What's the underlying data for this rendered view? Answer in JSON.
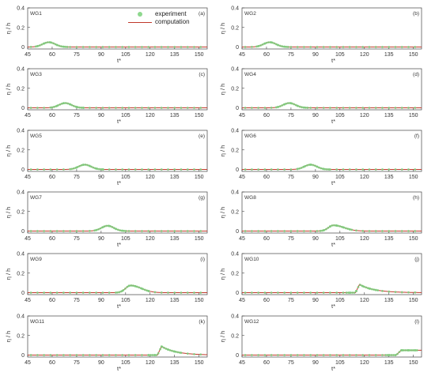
{
  "legend": {
    "experiment_label": "experiment",
    "computation_label": "computation"
  },
  "colors": {
    "experiment": "#7ccd7c",
    "computation": "#c0392b",
    "axis": "#444444"
  },
  "chart_data": [
    {
      "type": "line",
      "panel_label": "(a)",
      "gauge": "WG1",
      "xlabel": "t*",
      "ylabel": "η / h",
      "xlim": [
        45,
        155
      ],
      "ylim": [
        -0.02,
        0.4
      ],
      "xticks": [
        45,
        60,
        75,
        90,
        105,
        120,
        135,
        150
      ],
      "yticks": [
        0,
        0.2,
        0.4
      ],
      "peak_t": 58,
      "peak_eta": 0.05,
      "shape": "symmetric",
      "series": [
        {
          "name": "experiment"
        },
        {
          "name": "computation"
        }
      ]
    },
    {
      "type": "line",
      "panel_label": "(b)",
      "gauge": "WG2",
      "xlabel": "t*",
      "ylabel": "η / h",
      "xlim": [
        45,
        155
      ],
      "ylim": [
        -0.02,
        0.4
      ],
      "xticks": [
        45,
        60,
        75,
        90,
        105,
        120,
        135,
        150
      ],
      "yticks": [
        0,
        0.2,
        0.4
      ],
      "peak_t": 62,
      "peak_eta": 0.05,
      "shape": "symmetric",
      "series": [
        {
          "name": "experiment"
        },
        {
          "name": "computation"
        }
      ]
    },
    {
      "type": "line",
      "panel_label": "(c)",
      "gauge": "WG3",
      "xlabel": "t*",
      "ylabel": "η / h",
      "xlim": [
        45,
        155
      ],
      "ylim": [
        -0.02,
        0.4
      ],
      "xticks": [
        45,
        60,
        75,
        90,
        105,
        120,
        135,
        150
      ],
      "yticks": [
        0,
        0.2,
        0.4
      ],
      "peak_t": 68,
      "peak_eta": 0.05,
      "shape": "symmetric",
      "series": [
        {
          "name": "experiment"
        },
        {
          "name": "computation"
        }
      ]
    },
    {
      "type": "line",
      "panel_label": "(d)",
      "gauge": "WG4",
      "xlabel": "t*",
      "ylabel": "η / h",
      "xlim": [
        45,
        155
      ],
      "ylim": [
        -0.02,
        0.4
      ],
      "xticks": [
        45,
        60,
        75,
        90,
        105,
        120,
        135,
        150
      ],
      "yticks": [
        0,
        0.2,
        0.4
      ],
      "peak_t": 74,
      "peak_eta": 0.05,
      "shape": "symmetric",
      "series": [
        {
          "name": "experiment"
        },
        {
          "name": "computation"
        }
      ]
    },
    {
      "type": "line",
      "panel_label": "(e)",
      "gauge": "WG5",
      "xlabel": "t*",
      "ylabel": "η / h",
      "xlim": [
        45,
        155
      ],
      "ylim": [
        -0.02,
        0.4
      ],
      "xticks": [
        45,
        60,
        75,
        90,
        105,
        120,
        135,
        150
      ],
      "yticks": [
        0,
        0.2,
        0.4
      ],
      "peak_t": 80,
      "peak_eta": 0.05,
      "shape": "symmetric",
      "series": [
        {
          "name": "experiment"
        },
        {
          "name": "computation"
        }
      ]
    },
    {
      "type": "line",
      "panel_label": "(f)",
      "gauge": "WG6",
      "xlabel": "t*",
      "ylabel": "η / h",
      "xlim": [
        45,
        155
      ],
      "ylim": [
        -0.02,
        0.4
      ],
      "xticks": [
        45,
        60,
        75,
        90,
        105,
        120,
        135,
        150
      ],
      "yticks": [
        0,
        0.2,
        0.4
      ],
      "peak_t": 87,
      "peak_eta": 0.05,
      "shape": "symmetric",
      "series": [
        {
          "name": "experiment"
        },
        {
          "name": "computation"
        }
      ]
    },
    {
      "type": "line",
      "panel_label": "(g)",
      "gauge": "WG7",
      "xlabel": "t*",
      "ylabel": "η / h",
      "xlim": [
        45,
        155
      ],
      "ylim": [
        -0.02,
        0.4
      ],
      "xticks": [
        45,
        60,
        75,
        90,
        105,
        120,
        135,
        150
      ],
      "yticks": [
        0,
        0.2,
        0.4
      ],
      "peak_t": 94,
      "peak_eta": 0.055,
      "shape": "symmetric",
      "series": [
        {
          "name": "experiment"
        },
        {
          "name": "computation"
        }
      ]
    },
    {
      "type": "line",
      "panel_label": "(h)",
      "gauge": "WG8",
      "xlabel": "t*",
      "ylabel": "η / h",
      "xlim": [
        45,
        155
      ],
      "ylim": [
        -0.02,
        0.4
      ],
      "xticks": [
        45,
        60,
        75,
        90,
        105,
        120,
        135,
        150
      ],
      "yticks": [
        0,
        0.2,
        0.4
      ],
      "peak_t": 101,
      "peak_eta": 0.06,
      "shape": "skewed",
      "series": [
        {
          "name": "experiment"
        },
        {
          "name": "computation"
        }
      ]
    },
    {
      "type": "line",
      "panel_label": "(i)",
      "gauge": "WG9",
      "xlabel": "t*",
      "ylabel": "η / h",
      "xlim": [
        45,
        155
      ],
      "ylim": [
        -0.02,
        0.4
      ],
      "xticks": [
        45,
        60,
        75,
        90,
        105,
        120,
        135,
        150
      ],
      "yticks": [
        0,
        0.2,
        0.4
      ],
      "peak_t": 108,
      "peak_eta": 0.075,
      "shape": "skewed",
      "series": [
        {
          "name": "experiment"
        },
        {
          "name": "computation"
        }
      ]
    },
    {
      "type": "line",
      "panel_label": "(j)",
      "gauge": "WG10",
      "xlabel": "t*",
      "ylabel": "η / h",
      "xlim": [
        45,
        155
      ],
      "ylim": [
        -0.02,
        0.4
      ],
      "xticks": [
        45,
        60,
        75,
        90,
        105,
        120,
        135,
        150
      ],
      "yticks": [
        0,
        0.2,
        0.4
      ],
      "peak_t": 117,
      "peak_eta": 0.085,
      "shape": "front",
      "series": [
        {
          "name": "experiment"
        },
        {
          "name": "computation"
        }
      ]
    },
    {
      "type": "line",
      "panel_label": "(k)",
      "gauge": "WG11",
      "xlabel": "t*",
      "ylabel": "η / h",
      "xlim": [
        45,
        155
      ],
      "ylim": [
        -0.02,
        0.4
      ],
      "xticks": [
        45,
        60,
        75,
        90,
        105,
        120,
        135,
        150
      ],
      "yticks": [
        0,
        0.2,
        0.4
      ],
      "peak_t": 127,
      "peak_eta": 0.09,
      "shape": "front",
      "series": [
        {
          "name": "experiment"
        },
        {
          "name": "computation"
        }
      ]
    },
    {
      "type": "line",
      "panel_label": "(l)",
      "gauge": "WG12",
      "xlabel": "t*",
      "ylabel": "η / h",
      "xlim": [
        45,
        155
      ],
      "ylim": [
        -0.02,
        0.4
      ],
      "xticks": [
        45,
        60,
        75,
        90,
        105,
        120,
        135,
        150
      ],
      "yticks": [
        0,
        0.2,
        0.4
      ],
      "peak_t": 141,
      "peak_eta": 0.05,
      "shape": "step",
      "series": [
        {
          "name": "experiment"
        },
        {
          "name": "computation"
        }
      ]
    }
  ]
}
